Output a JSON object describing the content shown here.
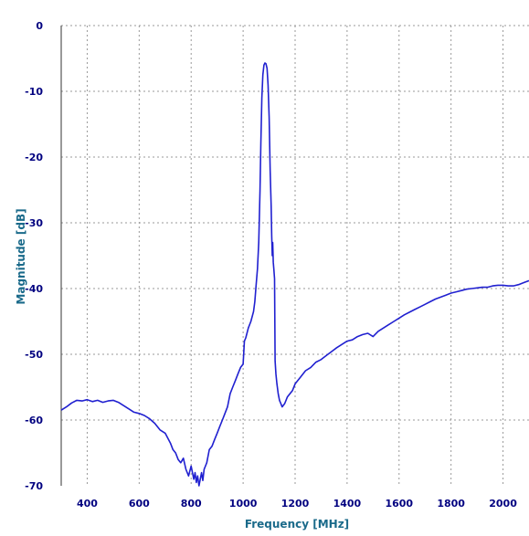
{
  "chart_data": {
    "type": "line",
    "title": "",
    "xlabel": "Frequency [MHz]",
    "ylabel": "Magnitude [dB]",
    "xlim": [
      300,
      2100
    ],
    "ylim": [
      -70,
      0
    ],
    "x_ticks": [
      400,
      600,
      800,
      1000,
      1200,
      1400,
      1600,
      1800,
      2000
    ],
    "x_tick_labels": [
      "400",
      "600",
      "800",
      "1000",
      "1200",
      "1400",
      "1600",
      "1800",
      "2000"
    ],
    "y_ticks": [
      0,
      -10,
      -20,
      -30,
      -40,
      -50,
      -60,
      -70
    ],
    "y_tick_labels": [
      "0",
      "-10",
      "-20",
      "-30",
      "-40",
      "-50",
      "-60",
      "-70"
    ],
    "grid": true,
    "colors": {
      "line": "#2020d0",
      "tick_text": "#000080",
      "axis_title": "#1a6a8a",
      "grid": "#999999"
    },
    "series": [
      {
        "points": [
          [
            300,
            -58.5
          ],
          [
            320,
            -58.0
          ],
          [
            340,
            -57.4
          ],
          [
            360,
            -57.0
          ],
          [
            380,
            -57.1
          ],
          [
            400,
            -56.9
          ],
          [
            420,
            -57.2
          ],
          [
            440,
            -57.0
          ],
          [
            460,
            -57.3
          ],
          [
            480,
            -57.1
          ],
          [
            500,
            -57.0
          ],
          [
            520,
            -57.3
          ],
          [
            540,
            -57.8
          ],
          [
            560,
            -58.3
          ],
          [
            580,
            -58.8
          ],
          [
            600,
            -59.0
          ],
          [
            620,
            -59.3
          ],
          [
            640,
            -59.8
          ],
          [
            660,
            -60.5
          ],
          [
            680,
            -61.5
          ],
          [
            700,
            -62.0
          ],
          [
            720,
            -63.5
          ],
          [
            730,
            -64.5
          ],
          [
            740,
            -65.0
          ],
          [
            750,
            -66.0
          ],
          [
            760,
            -66.5
          ],
          [
            770,
            -65.8
          ],
          [
            780,
            -67.5
          ],
          [
            790,
            -68.5
          ],
          [
            800,
            -67.0
          ],
          [
            810,
            -69.0
          ],
          [
            815,
            -68.0
          ],
          [
            820,
            -69.5
          ],
          [
            825,
            -68.5
          ],
          [
            830,
            -70.0
          ],
          [
            835,
            -69.0
          ],
          [
            840,
            -68.0
          ],
          [
            845,
            -69.2
          ],
          [
            850,
            -67.5
          ],
          [
            860,
            -66.5
          ],
          [
            870,
            -64.5
          ],
          [
            880,
            -64.0
          ],
          [
            890,
            -63.0
          ],
          [
            900,
            -62.0
          ],
          [
            910,
            -61.0
          ],
          [
            920,
            -60.0
          ],
          [
            930,
            -59.0
          ],
          [
            940,
            -58.0
          ],
          [
            950,
            -56.0
          ],
          [
            960,
            -55.0
          ],
          [
            970,
            -54.0
          ],
          [
            980,
            -53.0
          ],
          [
            990,
            -52.0
          ],
          [
            1000,
            -51.5
          ],
          [
            1005,
            -48.0
          ],
          [
            1010,
            -47.5
          ],
          [
            1020,
            -46.0
          ],
          [
            1030,
            -45.0
          ],
          [
            1040,
            -43.5
          ],
          [
            1045,
            -42.0
          ],
          [
            1050,
            -39.5
          ],
          [
            1055,
            -37.0
          ],
          [
            1060,
            -33.0
          ],
          [
            1065,
            -25.0
          ],
          [
            1068,
            -18.0
          ],
          [
            1072,
            -11.0
          ],
          [
            1076,
            -7.5
          ],
          [
            1080,
            -6.0
          ],
          [
            1084,
            -5.7
          ],
          [
            1088,
            -5.8
          ],
          [
            1092,
            -6.5
          ],
          [
            1096,
            -9.0
          ],
          [
            1100,
            -14.0
          ],
          [
            1104,
            -22.0
          ],
          [
            1108,
            -27.5
          ],
          [
            1110,
            -32.0
          ],
          [
            1112,
            -35.0
          ],
          [
            1114,
            -33.0
          ],
          [
            1116,
            -36.0
          ],
          [
            1118,
            -37.0
          ],
          [
            1121,
            -38.5
          ],
          [
            1123,
            -51.0
          ],
          [
            1126,
            -53.0
          ],
          [
            1130,
            -54.5
          ],
          [
            1135,
            -56.0
          ],
          [
            1140,
            -57.0
          ],
          [
            1145,
            -57.5
          ],
          [
            1150,
            -58.0
          ],
          [
            1160,
            -57.5
          ],
          [
            1170,
            -56.5
          ],
          [
            1180,
            -56.0
          ],
          [
            1190,
            -55.5
          ],
          [
            1200,
            -54.5
          ],
          [
            1220,
            -53.5
          ],
          [
            1240,
            -52.5
          ],
          [
            1260,
            -52.0
          ],
          [
            1280,
            -51.2
          ],
          [
            1300,
            -50.8
          ],
          [
            1320,
            -50.2
          ],
          [
            1340,
            -49.6
          ],
          [
            1360,
            -49.0
          ],
          [
            1380,
            -48.5
          ],
          [
            1400,
            -48.0
          ],
          [
            1420,
            -47.8
          ],
          [
            1440,
            -47.3
          ],
          [
            1460,
            -47.0
          ],
          [
            1480,
            -46.8
          ],
          [
            1500,
            -47.3
          ],
          [
            1520,
            -46.5
          ],
          [
            1540,
            -46.0
          ],
          [
            1560,
            -45.5
          ],
          [
            1580,
            -45.0
          ],
          [
            1600,
            -44.5
          ],
          [
            1620,
            -44.0
          ],
          [
            1640,
            -43.6
          ],
          [
            1660,
            -43.2
          ],
          [
            1680,
            -42.8
          ],
          [
            1700,
            -42.4
          ],
          [
            1720,
            -42.0
          ],
          [
            1740,
            -41.6
          ],
          [
            1760,
            -41.3
          ],
          [
            1780,
            -41.0
          ],
          [
            1800,
            -40.7
          ],
          [
            1820,
            -40.5
          ],
          [
            1840,
            -40.3
          ],
          [
            1860,
            -40.1
          ],
          [
            1880,
            -40.0
          ],
          [
            1900,
            -39.9
          ],
          [
            1920,
            -39.8
          ],
          [
            1940,
            -39.8
          ],
          [
            1960,
            -39.6
          ],
          [
            1980,
            -39.5
          ],
          [
            2000,
            -39.5
          ],
          [
            2020,
            -39.6
          ],
          [
            2040,
            -39.6
          ],
          [
            2060,
            -39.4
          ],
          [
            2080,
            -39.1
          ],
          [
            2100,
            -38.8
          ]
        ]
      }
    ]
  }
}
